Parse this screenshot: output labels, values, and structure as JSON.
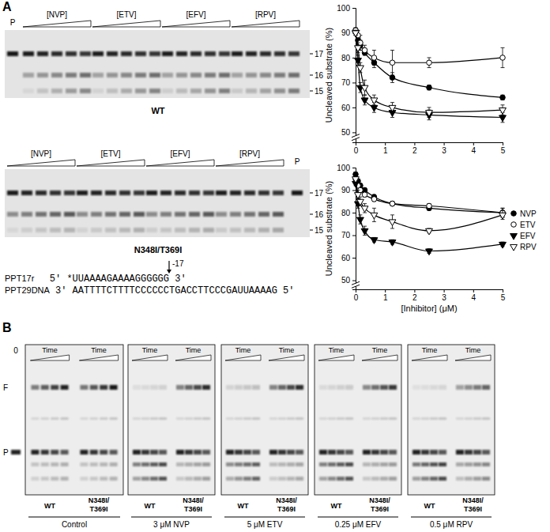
{
  "panel_labels": [
    "A",
    "B"
  ],
  "gels_a": [
    {
      "lanes": [
        "[NVP]",
        "[ETV]",
        "[EFV]",
        "[RPV]"
      ],
      "p_label": "P",
      "size_labels": [
        "17",
        "16",
        "15"
      ],
      "caption": "WT"
    },
    {
      "lanes": [
        "[NVP]",
        "[ETV]",
        "[EFV]",
        "[RPV]"
      ],
      "p_label": "P",
      "size_labels": [
        "17",
        "16",
        "15"
      ],
      "caption": "N348I/T369I"
    }
  ],
  "sequences": [
    {
      "name": "PPT17r",
      "strand": "5' *UUAAAAGAAAAGGGGGG 3'"
    },
    {
      "name": "PPT29DNA",
      "strand": "3' AATTTTCTTTTCCCCCCTGACCTTCCCGAUUAAAAG 5'"
    }
  ],
  "cleavage_site": "-17",
  "chart_data": [
    {
      "type": "line",
      "y_label": "Uncleaved substrate (%)",
      "x": [
        0,
        0.08,
        0.16,
        0.31,
        0.63,
        1.25,
        2.5,
        5
      ],
      "xlim": [
        0,
        5
      ],
      "xticks": [
        0,
        1,
        2,
        3,
        4,
        5
      ],
      "ylim": [
        46,
        100
      ],
      "yticks": [
        50,
        60,
        70,
        80,
        90,
        100
      ],
      "series": [
        {
          "name": "NVP",
          "color": "#000000",
          "marker": "circle",
          "line_style": "solid",
          "values": [
            91,
            87,
            85,
            82,
            78,
            72,
            68,
            64
          ],
          "errors": [
            1,
            1,
            2,
            1,
            2,
            2,
            1,
            1
          ]
        },
        {
          "name": "ETV",
          "color": "#000000",
          "marker": "circle-open",
          "line_style": "solid",
          "values": [
            91,
            89,
            86,
            83,
            80,
            78,
            78,
            80
          ],
          "errors": [
            1,
            2,
            3,
            2,
            3,
            5,
            2,
            4
          ]
        },
        {
          "name": "EFV",
          "color": "#000000",
          "marker": "triangle-down",
          "line_style": "solid",
          "values": [
            90,
            79,
            68,
            63,
            60,
            58,
            57,
            56
          ],
          "errors": [
            1,
            2,
            2,
            2,
            2,
            2,
            2,
            2
          ]
        },
        {
          "name": "RPV",
          "color": "#000000",
          "marker": "triangle-down-open",
          "line_style": "solid",
          "values": [
            90,
            84,
            76,
            68,
            63,
            60,
            58,
            59
          ],
          "errors": [
            1,
            2,
            2,
            3,
            2,
            2,
            2,
            2
          ]
        }
      ]
    },
    {
      "type": "line",
      "y_label": "Uncleaved substrate (%)",
      "x_label": "[Inhibitor] (μM)",
      "legend": "right",
      "x": [
        0,
        0.08,
        0.16,
        0.31,
        0.63,
        1.25,
        2.5,
        5
      ],
      "xlim": [
        0,
        5
      ],
      "xticks": [
        0,
        1,
        2,
        3,
        4,
        5
      ],
      "ylim": [
        46,
        100
      ],
      "yticks": [
        50,
        60,
        70,
        80,
        90,
        100
      ],
      "series": [
        {
          "name": "NVP",
          "color": "#000000",
          "marker": "circle",
          "line_style": "solid",
          "values": [
            97,
            94,
            92,
            90,
            87,
            84,
            82,
            80
          ],
          "errors": [
            1,
            1,
            1,
            1,
            1,
            1,
            1,
            2
          ]
        },
        {
          "name": "ETV",
          "color": "#000000",
          "marker": "circle-open",
          "line_style": "solid",
          "values": [
            95,
            92,
            90,
            88,
            86,
            84,
            83,
            80
          ],
          "errors": [
            1,
            1,
            1,
            1,
            1,
            1,
            1,
            2
          ]
        },
        {
          "name": "EFV",
          "color": "#000000",
          "marker": "triangle-down",
          "line_style": "solid",
          "values": [
            93,
            84,
            77,
            72,
            68,
            67,
            63,
            66
          ],
          "errors": [
            1,
            2,
            2,
            2,
            1,
            1,
            1,
            1
          ]
        },
        {
          "name": "RPV",
          "color": "#000000",
          "marker": "triangle-down-open",
          "line_style": "solid",
          "values": [
            95,
            88,
            85,
            82,
            79,
            76,
            72,
            79
          ],
          "errors": [
            1,
            2,
            2,
            2,
            3,
            3,
            1,
            2
          ]
        }
      ]
    }
  ],
  "gel_b": {
    "zero_lane": "0",
    "band_labels": [
      "F",
      "P"
    ],
    "time_label": "Time",
    "lanes": [
      "WT",
      "N348I/T369I"
    ],
    "conditions": [
      "Control",
      "3 μM NVP",
      "5 μM ETV",
      "0.25 μM EFV",
      "0.5 μM RPV"
    ]
  }
}
